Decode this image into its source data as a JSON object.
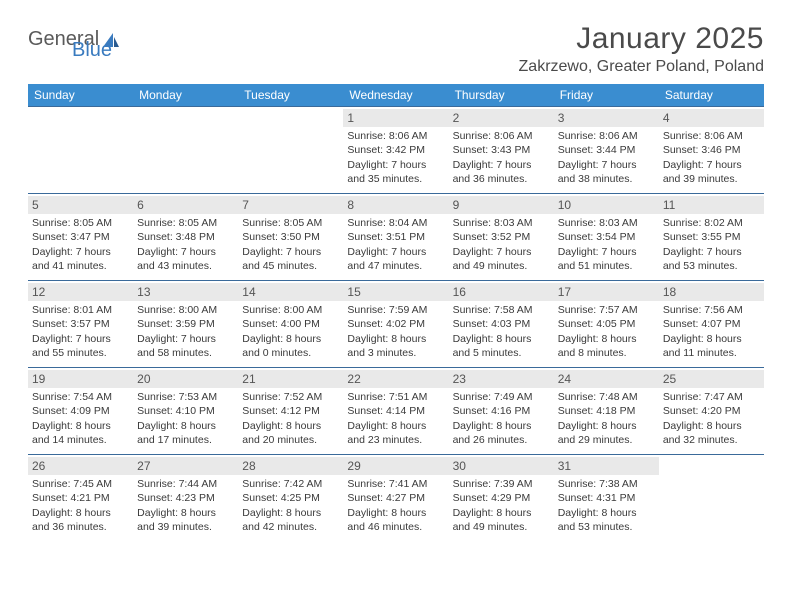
{
  "logo": {
    "text1": "General",
    "text2": "Blue"
  },
  "title": "January 2025",
  "location": "Zakrzewo, Greater Poland, Poland",
  "colors": {
    "header_bg": "#3a8dd0",
    "header_text": "#ffffff",
    "row_border": "#3a6a9a",
    "daynum_bg": "#e9e9e9",
    "logo_accent": "#3a7bbf",
    "text": "#3a3a3a"
  },
  "weekdays": [
    "Sunday",
    "Monday",
    "Tuesday",
    "Wednesday",
    "Thursday",
    "Friday",
    "Saturday"
  ],
  "weeks": [
    [
      {
        "empty": true
      },
      {
        "empty": true
      },
      {
        "empty": true
      },
      {
        "num": "1",
        "sunrise": "Sunrise: 8:06 AM",
        "sunset": "Sunset: 3:42 PM",
        "day1": "Daylight: 7 hours",
        "day2": "and 35 minutes."
      },
      {
        "num": "2",
        "sunrise": "Sunrise: 8:06 AM",
        "sunset": "Sunset: 3:43 PM",
        "day1": "Daylight: 7 hours",
        "day2": "and 36 minutes."
      },
      {
        "num": "3",
        "sunrise": "Sunrise: 8:06 AM",
        "sunset": "Sunset: 3:44 PM",
        "day1": "Daylight: 7 hours",
        "day2": "and 38 minutes."
      },
      {
        "num": "4",
        "sunrise": "Sunrise: 8:06 AM",
        "sunset": "Sunset: 3:46 PM",
        "day1": "Daylight: 7 hours",
        "day2": "and 39 minutes."
      }
    ],
    [
      {
        "num": "5",
        "sunrise": "Sunrise: 8:05 AM",
        "sunset": "Sunset: 3:47 PM",
        "day1": "Daylight: 7 hours",
        "day2": "and 41 minutes."
      },
      {
        "num": "6",
        "sunrise": "Sunrise: 8:05 AM",
        "sunset": "Sunset: 3:48 PM",
        "day1": "Daylight: 7 hours",
        "day2": "and 43 minutes."
      },
      {
        "num": "7",
        "sunrise": "Sunrise: 8:05 AM",
        "sunset": "Sunset: 3:50 PM",
        "day1": "Daylight: 7 hours",
        "day2": "and 45 minutes."
      },
      {
        "num": "8",
        "sunrise": "Sunrise: 8:04 AM",
        "sunset": "Sunset: 3:51 PM",
        "day1": "Daylight: 7 hours",
        "day2": "and 47 minutes."
      },
      {
        "num": "9",
        "sunrise": "Sunrise: 8:03 AM",
        "sunset": "Sunset: 3:52 PM",
        "day1": "Daylight: 7 hours",
        "day2": "and 49 minutes."
      },
      {
        "num": "10",
        "sunrise": "Sunrise: 8:03 AM",
        "sunset": "Sunset: 3:54 PM",
        "day1": "Daylight: 7 hours",
        "day2": "and 51 minutes."
      },
      {
        "num": "11",
        "sunrise": "Sunrise: 8:02 AM",
        "sunset": "Sunset: 3:55 PM",
        "day1": "Daylight: 7 hours",
        "day2": "and 53 minutes."
      }
    ],
    [
      {
        "num": "12",
        "sunrise": "Sunrise: 8:01 AM",
        "sunset": "Sunset: 3:57 PM",
        "day1": "Daylight: 7 hours",
        "day2": "and 55 minutes."
      },
      {
        "num": "13",
        "sunrise": "Sunrise: 8:00 AM",
        "sunset": "Sunset: 3:59 PM",
        "day1": "Daylight: 7 hours",
        "day2": "and 58 minutes."
      },
      {
        "num": "14",
        "sunrise": "Sunrise: 8:00 AM",
        "sunset": "Sunset: 4:00 PM",
        "day1": "Daylight: 8 hours",
        "day2": "and 0 minutes."
      },
      {
        "num": "15",
        "sunrise": "Sunrise: 7:59 AM",
        "sunset": "Sunset: 4:02 PM",
        "day1": "Daylight: 8 hours",
        "day2": "and 3 minutes."
      },
      {
        "num": "16",
        "sunrise": "Sunrise: 7:58 AM",
        "sunset": "Sunset: 4:03 PM",
        "day1": "Daylight: 8 hours",
        "day2": "and 5 minutes."
      },
      {
        "num": "17",
        "sunrise": "Sunrise: 7:57 AM",
        "sunset": "Sunset: 4:05 PM",
        "day1": "Daylight: 8 hours",
        "day2": "and 8 minutes."
      },
      {
        "num": "18",
        "sunrise": "Sunrise: 7:56 AM",
        "sunset": "Sunset: 4:07 PM",
        "day1": "Daylight: 8 hours",
        "day2": "and 11 minutes."
      }
    ],
    [
      {
        "num": "19",
        "sunrise": "Sunrise: 7:54 AM",
        "sunset": "Sunset: 4:09 PM",
        "day1": "Daylight: 8 hours",
        "day2": "and 14 minutes."
      },
      {
        "num": "20",
        "sunrise": "Sunrise: 7:53 AM",
        "sunset": "Sunset: 4:10 PM",
        "day1": "Daylight: 8 hours",
        "day2": "and 17 minutes."
      },
      {
        "num": "21",
        "sunrise": "Sunrise: 7:52 AM",
        "sunset": "Sunset: 4:12 PM",
        "day1": "Daylight: 8 hours",
        "day2": "and 20 minutes."
      },
      {
        "num": "22",
        "sunrise": "Sunrise: 7:51 AM",
        "sunset": "Sunset: 4:14 PM",
        "day1": "Daylight: 8 hours",
        "day2": "and 23 minutes."
      },
      {
        "num": "23",
        "sunrise": "Sunrise: 7:49 AM",
        "sunset": "Sunset: 4:16 PM",
        "day1": "Daylight: 8 hours",
        "day2": "and 26 minutes."
      },
      {
        "num": "24",
        "sunrise": "Sunrise: 7:48 AM",
        "sunset": "Sunset: 4:18 PM",
        "day1": "Daylight: 8 hours",
        "day2": "and 29 minutes."
      },
      {
        "num": "25",
        "sunrise": "Sunrise: 7:47 AM",
        "sunset": "Sunset: 4:20 PM",
        "day1": "Daylight: 8 hours",
        "day2": "and 32 minutes."
      }
    ],
    [
      {
        "num": "26",
        "sunrise": "Sunrise: 7:45 AM",
        "sunset": "Sunset: 4:21 PM",
        "day1": "Daylight: 8 hours",
        "day2": "and 36 minutes."
      },
      {
        "num": "27",
        "sunrise": "Sunrise: 7:44 AM",
        "sunset": "Sunset: 4:23 PM",
        "day1": "Daylight: 8 hours",
        "day2": "and 39 minutes."
      },
      {
        "num": "28",
        "sunrise": "Sunrise: 7:42 AM",
        "sunset": "Sunset: 4:25 PM",
        "day1": "Daylight: 8 hours",
        "day2": "and 42 minutes."
      },
      {
        "num": "29",
        "sunrise": "Sunrise: 7:41 AM",
        "sunset": "Sunset: 4:27 PM",
        "day1": "Daylight: 8 hours",
        "day2": "and 46 minutes."
      },
      {
        "num": "30",
        "sunrise": "Sunrise: 7:39 AM",
        "sunset": "Sunset: 4:29 PM",
        "day1": "Daylight: 8 hours",
        "day2": "and 49 minutes."
      },
      {
        "num": "31",
        "sunrise": "Sunrise: 7:38 AM",
        "sunset": "Sunset: 4:31 PM",
        "day1": "Daylight: 8 hours",
        "day2": "and 53 minutes."
      },
      {
        "empty": true
      }
    ]
  ]
}
